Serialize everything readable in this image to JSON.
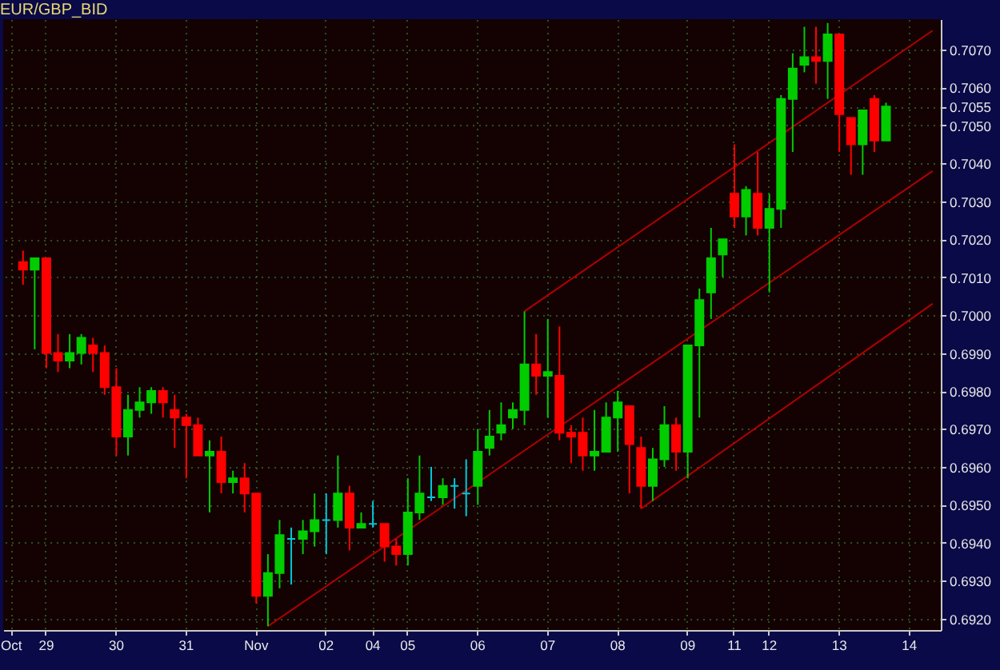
{
  "chart_data": {
    "type": "candlestick",
    "title": "EUR/GBP_BID",
    "categories": [
      "Oct",
      null,
      null,
      "29",
      null,
      null,
      null,
      null,
      null,
      "30",
      null,
      null,
      null,
      null,
      null,
      "31",
      null,
      null,
      null,
      null,
      null,
      "Nov",
      null,
      null,
      null,
      null,
      null,
      "02",
      null,
      null,
      null,
      "04",
      null,
      null,
      "05",
      null,
      null,
      null,
      null,
      null,
      "06",
      null,
      null,
      null,
      null,
      null,
      "07",
      null,
      null,
      null,
      null,
      null,
      "08",
      null,
      null,
      null,
      null,
      null,
      "09",
      null,
      null,
      null,
      "11",
      null,
      null,
      "12",
      null,
      null,
      null,
      null,
      null,
      "13",
      null,
      null,
      null,
      null,
      null,
      "14",
      null,
      null
    ],
    "ohlc": [
      null,
      [
        0.7014,
        0.7017,
        0.7008,
        0.7012
      ],
      [
        0.7012,
        0.7015,
        0.6991,
        0.7015
      ],
      [
        0.7015,
        0.7015,
        0.6986,
        0.699
      ],
      [
        0.699,
        0.6995,
        0.6985,
        0.6988
      ],
      [
        0.6988,
        0.6995,
        0.6986,
        0.699
      ],
      [
        0.699,
        0.6995,
        0.6987,
        0.6994
      ],
      [
        0.6992,
        0.6994,
        0.6985,
        0.699
      ],
      [
        0.699,
        0.6992,
        0.6979,
        0.6981
      ],
      [
        0.6981,
        0.6986,
        0.6963,
        0.6968
      ],
      [
        0.6968,
        0.6979,
        0.6963,
        0.6975
      ],
      [
        0.6975,
        0.6981,
        0.6973,
        0.6977
      ],
      [
        0.6977,
        0.6981,
        0.6974,
        0.698
      ],
      [
        0.698,
        0.6981,
        0.6973,
        0.6977
      ],
      [
        0.6975,
        0.6979,
        0.6965,
        0.6973
      ],
      [
        0.6973,
        0.6974,
        0.6957,
        0.6971
      ],
      [
        0.6971,
        0.6973,
        0.6963,
        0.6963
      ],
      [
        0.6963,
        0.6967,
        0.6948,
        0.6964
      ],
      [
        0.6964,
        0.6968,
        0.6953,
        0.6956
      ],
      [
        0.6956,
        0.6959,
        0.6953,
        0.6957
      ],
      [
        0.6957,
        0.6961,
        0.6948,
        0.6953
      ],
      [
        0.6953,
        0.6953,
        0.6924,
        0.6926
      ],
      [
        0.6926,
        0.6937,
        0.6918,
        0.6932
      ],
      [
        0.6932,
        0.6946,
        0.6928,
        0.6942
      ],
      [
        0.6941,
        0.6944,
        0.6929,
        0.6941
      ],
      [
        0.6941,
        0.6946,
        0.6937,
        0.6943
      ],
      [
        0.6943,
        0.6953,
        0.6939,
        0.6946
      ],
      [
        0.6946,
        0.6953,
        0.6937,
        0.6946
      ],
      [
        0.6946,
        0.6963,
        0.6944,
        0.6953
      ],
      [
        0.6953,
        0.6955,
        0.6938,
        0.6944
      ],
      [
        0.6944,
        0.6948,
        0.6944,
        0.6945
      ],
      [
        0.6945,
        0.6951,
        0.6944,
        0.6945
      ],
      [
        0.6945,
        0.6945,
        0.6935,
        0.6939
      ],
      [
        0.6939,
        0.6941,
        0.6934,
        0.6937
      ],
      [
        0.6937,
        0.6957,
        0.6934,
        0.6948
      ],
      [
        0.6948,
        0.6963,
        0.6946,
        0.6953
      ],
      [
        0.6952,
        0.696,
        0.6951,
        0.6952
      ],
      [
        0.6952,
        0.6957,
        0.695,
        0.6955
      ],
      [
        0.6955,
        0.6957,
        0.6949,
        0.6955
      ],
      [
        0.6953,
        0.6962,
        0.6947,
        0.6953
      ],
      [
        0.6955,
        0.697,
        0.695,
        0.6964
      ],
      [
        0.6965,
        0.6975,
        0.6963,
        0.6968
      ],
      [
        0.6969,
        0.6977,
        0.6967,
        0.6971
      ],
      [
        0.6973,
        0.6977,
        0.697,
        0.6975
      ],
      [
        0.6975,
        0.7001,
        0.6971,
        0.6987
      ],
      [
        0.6987,
        0.6995,
        0.6979,
        0.6984
      ],
      [
        0.6984,
        0.6999,
        0.6973,
        0.6985
      ],
      [
        0.6984,
        0.6997,
        0.6967,
        0.6969
      ],
      [
        0.6969,
        0.6971,
        0.6961,
        0.6968
      ],
      [
        0.6969,
        0.6973,
        0.6959,
        0.6963
      ],
      [
        0.6963,
        0.6975,
        0.6959,
        0.6964
      ],
      [
        0.6964,
        0.6977,
        0.6964,
        0.6973
      ],
      [
        0.6973,
        0.698,
        0.6964,
        0.6977
      ],
      [
        0.6976,
        0.6976,
        0.6953,
        0.6966
      ],
      [
        0.6965,
        0.6968,
        0.6949,
        0.6955
      ],
      [
        0.6955,
        0.6965,
        0.6951,
        0.6962
      ],
      [
        0.6962,
        0.6976,
        0.696,
        0.6971
      ],
      [
        0.6971,
        0.6973,
        0.6959,
        0.6964
      ],
      [
        0.6964,
        0.6992,
        0.6957,
        0.6992
      ],
      [
        0.6992,
        0.7007,
        0.6973,
        0.7004
      ],
      [
        0.7006,
        0.7023,
        0.6999,
        0.7015
      ],
      [
        0.7016,
        0.702,
        0.701,
        0.702
      ],
      [
        0.7032,
        0.7045,
        0.7023,
        0.7026
      ],
      [
        0.7026,
        0.7034,
        0.7021,
        0.7033
      ],
      [
        0.7032,
        0.7043,
        0.7021,
        0.7023
      ],
      [
        0.7023,
        0.7032,
        0.7006,
        0.7028
      ],
      [
        0.7028,
        0.7058,
        0.7023,
        0.7057
      ],
      [
        0.7057,
        0.7069,
        0.7043,
        0.7065
      ],
      [
        0.7066,
        0.7076,
        0.7064,
        0.7068
      ],
      [
        0.7068,
        0.7076,
        0.7061,
        0.7067
      ],
      [
        0.7067,
        0.7077,
        0.7057,
        0.7074
      ],
      [
        0.7074,
        0.7074,
        0.7043,
        0.7053
      ],
      [
        0.7052,
        0.7052,
        0.7037,
        0.7045
      ],
      [
        0.7045,
        0.7054,
        0.7037,
        0.7054
      ],
      [
        0.7057,
        0.7058,
        0.7043,
        0.7046
      ],
      [
        0.7046,
        0.7056,
        0.7046,
        0.7055
      ],
      null,
      null,
      null,
      null
    ],
    "colors": [
      null,
      "#ff0000",
      "#00cc00",
      "#ff0000",
      "#ff0000",
      "#00cc00",
      "#00cc00",
      "#ff0000",
      "#ff0000",
      "#ff0000",
      "#00cc00",
      "#00cc00",
      "#00cc00",
      "#ff0000",
      "#ff0000",
      "#ff0000",
      "#ff0000",
      "#00cc00",
      "#ff0000",
      "#00cc00",
      "#ff0000",
      "#ff0000",
      "#00cc00",
      "#00cc00",
      "#00c8d8",
      "#00cc00",
      "#00cc00",
      "#00c8d8",
      "#00cc00",
      "#ff0000",
      "#00cc00",
      "#00c8d8",
      "#ff0000",
      "#ff0000",
      "#00cc00",
      "#00cc00",
      "#00c8d8",
      "#00cc00",
      "#00c8d8",
      "#00c8d8",
      "#00cc00",
      "#00cc00",
      "#00cc00",
      "#00cc00",
      "#00cc00",
      "#ff0000",
      "#00cc00",
      "#ff0000",
      "#ff0000",
      "#ff0000",
      "#00cc00",
      "#00cc00",
      "#00cc00",
      "#ff0000",
      "#ff0000",
      "#00cc00",
      "#00cc00",
      "#ff0000",
      "#00cc00",
      "#00cc00",
      "#00cc00",
      "#00cc00",
      "#ff0000",
      "#00cc00",
      "#ff0000",
      "#00cc00",
      "#00cc00",
      "#00cc00",
      "#00cc00",
      "#ff0000",
      "#00cc00",
      "#ff0000",
      "#ff0000",
      "#00cc00",
      "#ff0000",
      "#00cc00",
      null,
      null,
      null,
      null
    ],
    "series": [
      {
        "type": "line",
        "color": "#b00000",
        "values": [
          null,
          null,
          null,
          null,
          null,
          null,
          null,
          null,
          null,
          null,
          null,
          null,
          null,
          null,
          null,
          null,
          null,
          null,
          null,
          null,
          null,
          null,
          null,
          null,
          null,
          null,
          null,
          null,
          null,
          null,
          null,
          null,
          null,
          null,
          null,
          null,
          null,
          null,
          null,
          null,
          null,
          null,
          null,
          null,
          0.7001,
          null,
          null,
          null,
          null,
          null,
          null,
          null,
          null,
          null,
          null,
          null,
          null,
          null,
          null,
          null,
          null,
          null,
          null,
          null,
          null,
          null,
          null,
          null,
          null,
          null,
          null,
          null,
          null,
          null,
          null,
          null,
          null,
          null,
          null,
          0.7075
        ]
      },
      {
        "type": "line",
        "color": "#b00000",
        "values": [
          null,
          null,
          null,
          null,
          null,
          null,
          null,
          null,
          null,
          null,
          null,
          null,
          null,
          null,
          null,
          null,
          null,
          null,
          null,
          null,
          null,
          null,
          0.6918,
          null,
          null,
          null,
          null,
          null,
          null,
          null,
          null,
          null,
          null,
          null,
          null,
          null,
          null,
          null,
          null,
          null,
          null,
          null,
          null,
          null,
          null,
          null,
          null,
          null,
          null,
          null,
          null,
          null,
          null,
          null,
          null,
          null,
          null,
          null,
          null,
          null,
          null,
          null,
          null,
          null,
          null,
          null,
          null,
          null,
          null,
          null,
          null,
          null,
          null,
          null,
          null,
          null,
          null,
          null,
          null,
          0.7038
        ]
      },
      {
        "type": "line",
        "color": "#b00000",
        "values": [
          null,
          null,
          null,
          null,
          null,
          null,
          null,
          null,
          null,
          null,
          null,
          null,
          null,
          null,
          null,
          null,
          null,
          null,
          null,
          null,
          null,
          null,
          null,
          null,
          null,
          null,
          null,
          null,
          null,
          null,
          null,
          null,
          null,
          null,
          null,
          null,
          null,
          null,
          null,
          null,
          null,
          null,
          null,
          null,
          null,
          null,
          null,
          null,
          null,
          null,
          null,
          null,
          null,
          null,
          0.6949,
          null,
          null,
          null,
          null,
          null,
          null,
          null,
          null,
          null,
          null,
          null,
          null,
          null,
          null,
          null,
          null,
          null,
          null,
          null,
          null,
          null,
          null,
          null,
          null,
          0.7003
        ]
      }
    ],
    "ylim": [
      0.6917,
      0.7078
    ],
    "yticks": [
      {
        "value": 0.692,
        "label": "0.6920"
      },
      {
        "value": 0.693,
        "label": "0.6930"
      },
      {
        "value": 0.694,
        "label": "0.6940"
      },
      {
        "value": 0.695,
        "label": "0.6950"
      },
      {
        "value": 0.696,
        "label": "0.6960"
      },
      {
        "value": 0.697,
        "label": "0.6970"
      },
      {
        "value": 0.698,
        "label": "0.6980"
      },
      {
        "value": 0.699,
        "label": "0.6990"
      },
      {
        "value": 0.7,
        "label": "0.7000"
      },
      {
        "value": 0.701,
        "label": "0.7010"
      },
      {
        "value": 0.702,
        "label": "0.7020"
      },
      {
        "value": 0.703,
        "label": "0.7030"
      },
      {
        "value": 0.704,
        "label": "0.7040"
      },
      {
        "value": 0.705,
        "label": "0.7050"
      },
      {
        "value": 0.7055,
        "label": "0.7055"
      },
      {
        "value": 0.706,
        "label": "0.7060"
      },
      {
        "value": 0.707,
        "label": "0.7070"
      }
    ],
    "grid": true
  }
}
